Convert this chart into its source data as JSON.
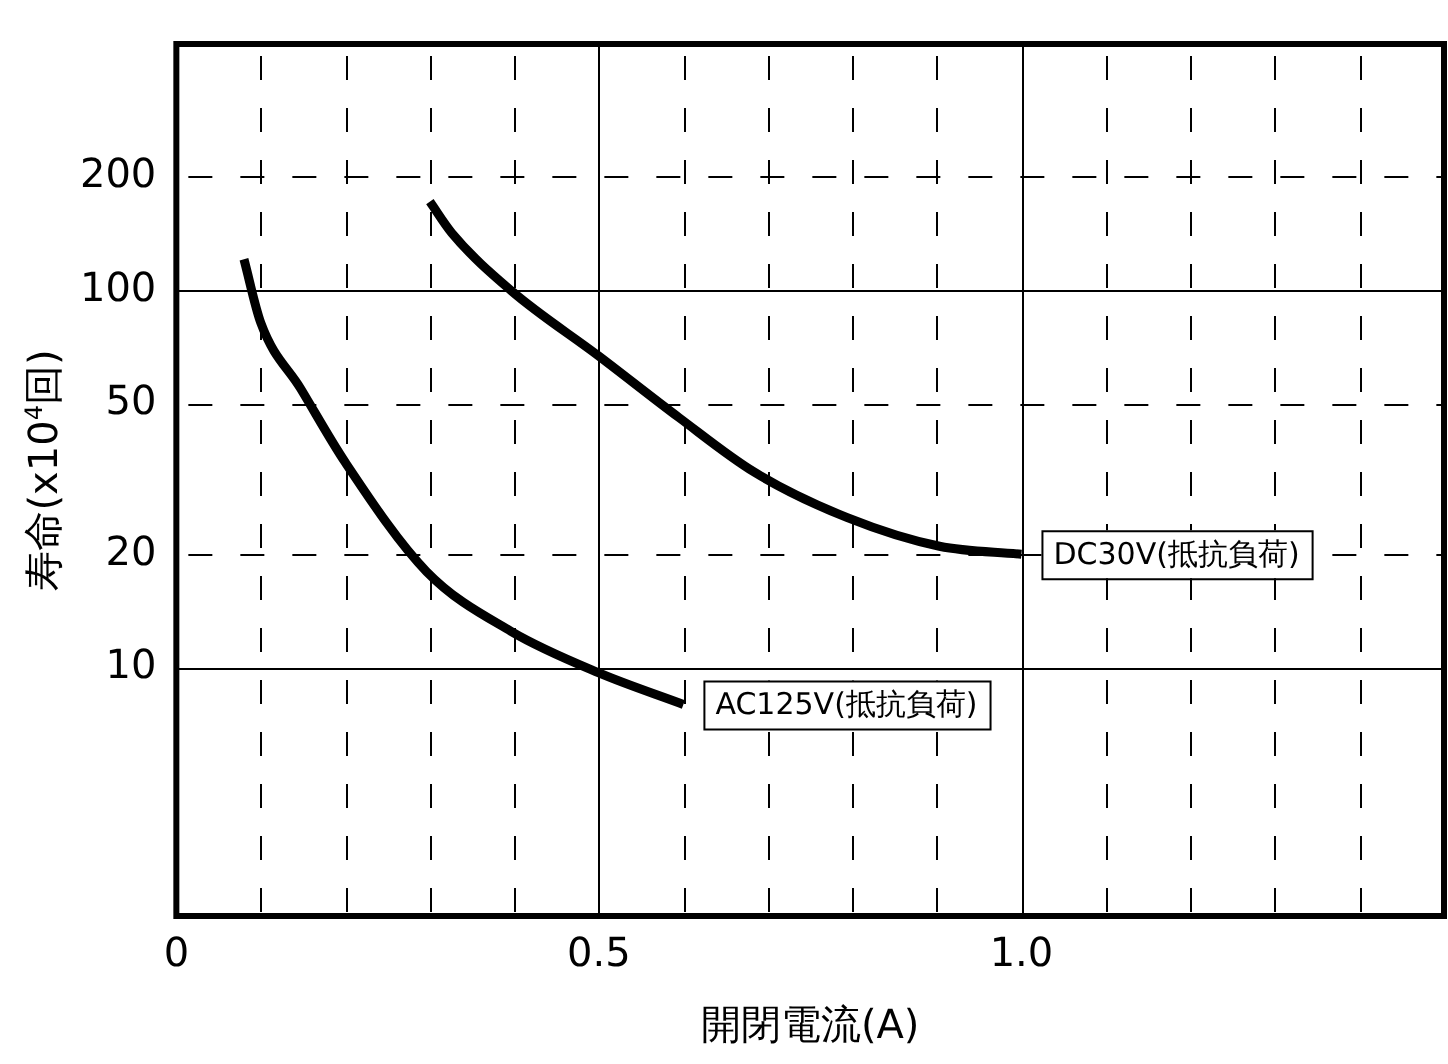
{
  "chart_data": {
    "type": "line",
    "xlabel": "開閉電流(A)",
    "ylabel": "寿命(x10$^{4}$回)",
    "log": "y",
    "grid": true,
    "legend": false,
    "marker": "none",
    "line_style": "solid",
    "xlim": [
      0,
      1.5
    ],
    "xticks": [
      0,
      {
        "value": 0.1,
        "label": null
      },
      {
        "value": 0.2,
        "label": null
      },
      {
        "value": 0.3,
        "label": null
      },
      {
        "value": 0.4,
        "label": null
      },
      0.5,
      {
        "value": 0.6,
        "label": null
      },
      {
        "value": 0.7,
        "label": null
      },
      {
        "value": 0.8,
        "label": null
      },
      {
        "value": 0.9,
        "label": null
      },
      {
        "value": 1,
        "label": "1.0"
      },
      {
        "value": 1.1,
        "label": null
      },
      {
        "value": 1.2,
        "label": null
      },
      {
        "value": 1.3,
        "label": null
      },
      {
        "value": 1.4,
        "label": null
      }
    ],
    "ylim": [
      2.2,
      450
    ],
    "yticks": [
      10,
      20,
      50,
      100,
      200
    ],
    "series": [
      {
        "name": "DC30V(抵抗負荷)",
        "color": "#000000",
        "x": [
          0.3,
          0.326,
          0.396,
          0.5,
          0.595,
          0.684,
          0.794,
          0.903,
          1.0
        ],
        "values": [
          172,
          142,
          100,
          67,
          46,
          33,
          25,
          21,
          20
        ]
      },
      {
        "name": "AC125V(抵抗負荷)",
        "color": "#000000",
        "x": [
          0.08,
          0.1,
          0.147,
          0.2,
          0.296,
          0.396,
          0.5,
          0.6
        ],
        "values": [
          121,
          82,
          55,
          35,
          18,
          12.5,
          9.7,
          8
        ]
      }
    ]
  }
}
